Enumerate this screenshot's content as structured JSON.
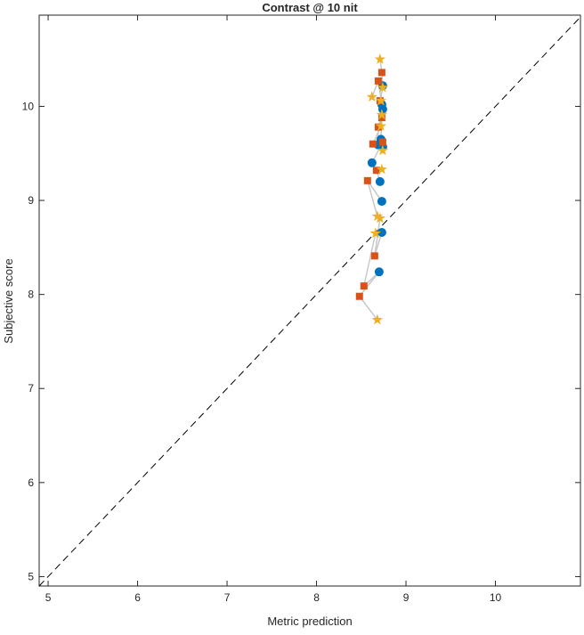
{
  "chart_data": {
    "type": "scatter",
    "title": "Contrast @ 10 nit",
    "xlabel": "Metric prediction",
    "ylabel": "Subjective score",
    "xlim": [
      4.9,
      10.95
    ],
    "ylim": [
      4.9,
      10.97
    ],
    "xticks": [
      5,
      6,
      7,
      8,
      9,
      10
    ],
    "yticks": [
      5,
      6,
      7,
      8,
      9,
      10
    ],
    "grid": false,
    "reference_line": "y = x (dashed)",
    "series": [
      {
        "name": "circle",
        "color": "#0072BD",
        "marker": "circle",
        "points": [
          [
            8.74,
            10.22
          ],
          [
            8.73,
            10.02
          ],
          [
            8.74,
            9.97
          ],
          [
            8.72,
            9.65
          ],
          [
            8.69,
            9.59
          ],
          [
            8.74,
            9.57
          ],
          [
            8.62,
            9.4
          ],
          [
            8.71,
            9.2
          ],
          [
            8.73,
            8.99
          ],
          [
            8.73,
            8.66
          ],
          [
            8.7,
            8.24
          ]
        ]
      },
      {
        "name": "square",
        "color": "#D95319",
        "marker": "square",
        "points": [
          [
            8.73,
            10.36
          ],
          [
            8.69,
            10.27
          ],
          [
            8.71,
            10.06
          ],
          [
            8.73,
            9.88
          ],
          [
            8.69,
            9.78
          ],
          [
            8.63,
            9.6
          ],
          [
            8.74,
            9.62
          ],
          [
            8.67,
            9.32
          ],
          [
            8.57,
            9.21
          ],
          [
            8.65,
            8.41
          ],
          [
            8.53,
            8.09
          ],
          [
            8.48,
            7.98
          ]
        ]
      },
      {
        "name": "star",
        "color": "#EDB120",
        "marker": "star",
        "points": [
          [
            8.71,
            10.5
          ],
          [
            8.62,
            10.1
          ],
          [
            8.74,
            10.2
          ],
          [
            8.72,
            10.06
          ],
          [
            8.73,
            9.91
          ],
          [
            8.72,
            9.79
          ],
          [
            8.74,
            9.53
          ],
          [
            8.73,
            9.33
          ],
          [
            8.68,
            8.83
          ],
          [
            8.71,
            8.81
          ],
          [
            8.66,
            8.65
          ],
          [
            8.68,
            7.73
          ]
        ]
      }
    ]
  }
}
